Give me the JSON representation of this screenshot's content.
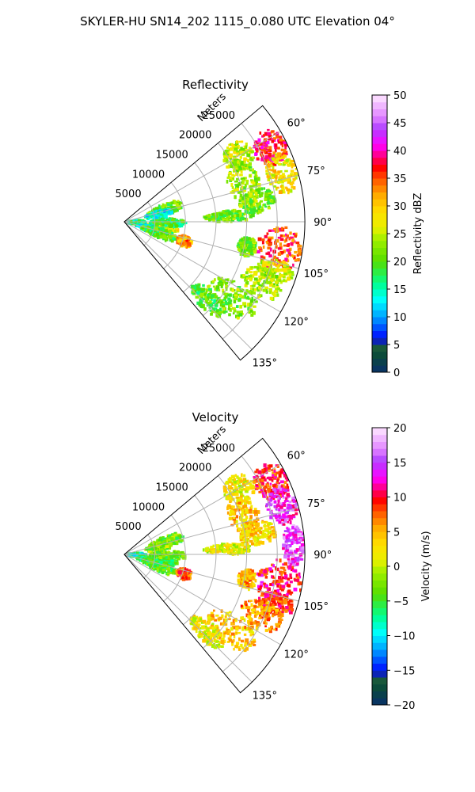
{
  "title": "SKYLER-HU  SN14_202  1115_0.080 UTC Elevation 04°",
  "chart_data": [
    {
      "type": "heatmap",
      "title": "Reflectivity",
      "range_label": "Meters",
      "range_ticks": [
        5000,
        10000,
        15000,
        20000,
        25000
      ],
      "range_ticks_text": [
        "5000",
        "10000",
        "15000",
        "20000",
        "25000"
      ],
      "rmax": 29500,
      "azimuth_range": [
        50,
        140
      ],
      "azimuth_ticks": [
        60,
        75,
        90,
        105,
        120,
        135
      ],
      "azimuth_ticks_text": [
        "60°",
        "75°",
        "90°",
        "105°",
        "120°",
        "135°"
      ],
      "colorbar": {
        "label": "Reflectivity dBZ",
        "min": 0,
        "max": 50,
        "ticks": [
          0,
          5,
          10,
          15,
          20,
          25,
          30,
          35,
          40,
          45,
          50
        ],
        "ticks_text": [
          "0",
          "5",
          "10",
          "15",
          "20",
          "25",
          "30",
          "35",
          "40",
          "45",
          "50"
        ],
        "stops": [
          [
            0,
            "#08306b"
          ],
          [
            0.06,
            "#0b4a3a"
          ],
          [
            0.1,
            "#1f5f3a"
          ],
          [
            0.12,
            "#0000ff"
          ],
          [
            0.2,
            "#00a0ff"
          ],
          [
            0.26,
            "#00ffff"
          ],
          [
            0.32,
            "#00ff90"
          ],
          [
            0.4,
            "#55dd00"
          ],
          [
            0.48,
            "#a0f000"
          ],
          [
            0.52,
            "#e8f000"
          ],
          [
            0.58,
            "#ffe000"
          ],
          [
            0.64,
            "#ffaa00"
          ],
          [
            0.7,
            "#ff5000"
          ],
          [
            0.74,
            "#ff0000"
          ],
          [
            0.78,
            "#ff0080"
          ],
          [
            0.82,
            "#ff00ff"
          ],
          [
            0.88,
            "#b040ff"
          ],
          [
            0.92,
            "#e080ff"
          ],
          [
            1,
            "#ffe8ff"
          ]
        ]
      },
      "echoes": [
        {
          "az": [
            57,
            70
          ],
          "r": [
            24000,
            29500
          ],
          "value": 37
        },
        {
          "az": [
            66,
            80
          ],
          "r": [
            24500,
            29500
          ],
          "value": 28
        },
        {
          "az": [
            54,
            67
          ],
          "r": [
            19000,
            24000
          ],
          "value": 25
        },
        {
          "az": [
            62,
            82
          ],
          "r": [
            18000,
            23000
          ],
          "value": 23
        },
        {
          "az": [
            76,
            86
          ],
          "r": [
            19000,
            25000
          ],
          "value": 22
        },
        {
          "az": [
            84,
            90
          ],
          "r": [
            13000,
            21000
          ],
          "value": 21
        },
        {
          "az": [
            92,
            108
          ],
          "r": [
            22000,
            29500
          ],
          "value": 36
        },
        {
          "az": [
            104,
            112
          ],
          "r": [
            23000,
            29000
          ],
          "value": 26
        },
        {
          "az": [
            97,
            106
          ],
          "r": [
            19000,
            22000
          ],
          "value": 22
        },
        {
          "az": [
            108,
            120
          ],
          "r": [
            21000,
            28000
          ],
          "value": 24
        },
        {
          "az": [
            118,
            132
          ],
          "r": [
            17000,
            26000
          ],
          "value": 22
        },
        {
          "az": [
            128,
            138
          ],
          "r": [
            15000,
            22000
          ],
          "value": 20
        },
        {
          "az": [
            66,
            80
          ],
          "r": [
            4000,
            10000
          ],
          "value": 21
        },
        {
          "az": [
            72,
            84
          ],
          "r": [
            3500,
            8000
          ],
          "value": 14
        },
        {
          "az": [
            84,
            100
          ],
          "r": [
            0,
            3500
          ],
          "value": 16
        },
        {
          "az": [
            95,
            103
          ],
          "r": [
            3000,
            9000
          ],
          "value": 27
        },
        {
          "az": [
            98,
            113
          ],
          "r": [
            2000,
            7000
          ],
          "value": 14
        },
        {
          "az": [
            100,
            116
          ],
          "r": [
            3000,
            9000
          ],
          "value": 20
        },
        {
          "az": [
            86,
            96
          ],
          "r": [
            4000,
            10000
          ],
          "value": 18
        },
        {
          "az": [
            103,
            113
          ],
          "r": [
            9000,
            11500
          ],
          "value": 33
        }
      ]
    },
    {
      "type": "heatmap",
      "title": "Velocity",
      "range_label": "Meters",
      "range_ticks": [
        5000,
        10000,
        15000,
        20000,
        25000
      ],
      "range_ticks_text": [
        "5000",
        "10000",
        "15000",
        "20000",
        "25000"
      ],
      "rmax": 29500,
      "azimuth_range": [
        50,
        140
      ],
      "azimuth_ticks": [
        60,
        75,
        90,
        105,
        120,
        135
      ],
      "azimuth_ticks_text": [
        "60°",
        "75°",
        "90°",
        "105°",
        "120°",
        "135°"
      ],
      "colorbar": {
        "label": "Velocity (m/s)",
        "min": -20,
        "max": 20,
        "ticks": [
          -20,
          -15,
          -10,
          -5,
          0,
          5,
          10,
          15,
          20
        ],
        "ticks_text": [
          "−20",
          "−15",
          "−10",
          "−5",
          "0",
          "5",
          "10",
          "15",
          "20"
        ],
        "stops": [
          [
            0,
            "#08306b"
          ],
          [
            0.06,
            "#0b4a3a"
          ],
          [
            0.1,
            "#1f5f3a"
          ],
          [
            0.12,
            "#0000ff"
          ],
          [
            0.2,
            "#00a0ff"
          ],
          [
            0.26,
            "#00ffff"
          ],
          [
            0.32,
            "#00ff90"
          ],
          [
            0.4,
            "#55dd00"
          ],
          [
            0.48,
            "#a0f000"
          ],
          [
            0.52,
            "#e8f000"
          ],
          [
            0.58,
            "#ffe000"
          ],
          [
            0.64,
            "#ffaa00"
          ],
          [
            0.7,
            "#ff5000"
          ],
          [
            0.74,
            "#ff0000"
          ],
          [
            0.78,
            "#ff0080"
          ],
          [
            0.82,
            "#ff00ff"
          ],
          [
            0.88,
            "#b040ff"
          ],
          [
            0.92,
            "#e080ff"
          ],
          [
            1,
            "#ffe8ff"
          ]
        ]
      },
      "echoes": [
        {
          "az": [
            57,
            70
          ],
          "r": [
            24000,
            29500
          ],
          "value": 9
        },
        {
          "az": [
            66,
            80
          ],
          "r": [
            24500,
            29500
          ],
          "value": 14
        },
        {
          "az": [
            80,
            94
          ],
          "r": [
            26000,
            29500
          ],
          "value": 15
        },
        {
          "az": [
            54,
            67
          ],
          "r": [
            19000,
            24000
          ],
          "value": 2
        },
        {
          "az": [
            62,
            82
          ],
          "r": [
            18000,
            23000
          ],
          "value": 4
        },
        {
          "az": [
            76,
            86
          ],
          "r": [
            19000,
            25000
          ],
          "value": 3
        },
        {
          "az": [
            84,
            90
          ],
          "r": [
            13000,
            21000
          ],
          "value": 1
        },
        {
          "az": [
            92,
            108
          ],
          "r": [
            22000,
            29500
          ],
          "value": 10
        },
        {
          "az": [
            104,
            112
          ],
          "r": [
            23000,
            29000
          ],
          "value": 9
        },
        {
          "az": [
            97,
            106
          ],
          "r": [
            19000,
            22000
          ],
          "value": 5
        },
        {
          "az": [
            108,
            120
          ],
          "r": [
            21000,
            28000
          ],
          "value": 6
        },
        {
          "az": [
            118,
            132
          ],
          "r": [
            17000,
            26000
          ],
          "value": 4
        },
        {
          "az": [
            128,
            138
          ],
          "r": [
            15000,
            22000
          ],
          "value": 2
        },
        {
          "az": [
            66,
            80
          ],
          "r": [
            4000,
            10000
          ],
          "value": -3
        },
        {
          "az": [
            72,
            84
          ],
          "r": [
            3500,
            8000
          ],
          "value": -2
        },
        {
          "az": [
            84,
            100
          ],
          "r": [
            0,
            3500
          ],
          "value": -8
        },
        {
          "az": [
            95,
            103
          ],
          "r": [
            3000,
            9000
          ],
          "value": -5
        },
        {
          "az": [
            98,
            113
          ],
          "r": [
            2000,
            7000
          ],
          "value": -6
        },
        {
          "az": [
            100,
            116
          ],
          "r": [
            3000,
            9000
          ],
          "value": -4
        },
        {
          "az": [
            86,
            96
          ],
          "r": [
            4000,
            10000
          ],
          "value": -3
        },
        {
          "az": [
            103,
            113
          ],
          "r": [
            9000,
            11500
          ],
          "value": 8
        }
      ]
    }
  ]
}
